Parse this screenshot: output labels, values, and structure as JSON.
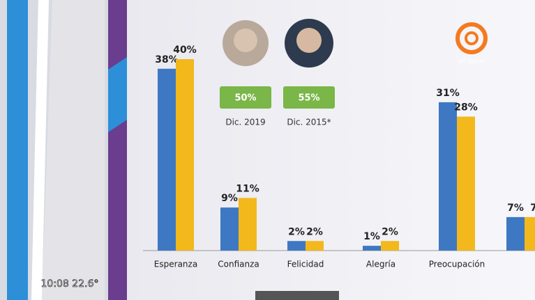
{
  "chart_data": {
    "type": "bar",
    "categories": [
      "Esperanza",
      "Confianza",
      "Felicidad",
      "Alegría",
      "Preocupación",
      null
    ],
    "series": [
      {
        "name": "Dic. 2019",
        "badge": "50%",
        "color": "#3e78c2",
        "values": [
          38,
          9,
          2,
          1,
          31,
          7
        ],
        "value_labels": [
          "38%",
          "9%",
          "2%",
          "1%",
          "31%",
          "7%"
        ]
      },
      {
        "name": "Dic. 2015*",
        "badge": "55%",
        "color": "#f2b81c",
        "values": [
          40,
          11,
          2,
          2,
          28,
          7
        ],
        "value_labels": [
          "40%",
          "11%",
          "2%",
          "2%",
          "28%",
          "7"
        ]
      }
    ]
  },
  "overlay": {
    "clock": "10:08 22.6°",
    "logo": "el doce"
  }
}
